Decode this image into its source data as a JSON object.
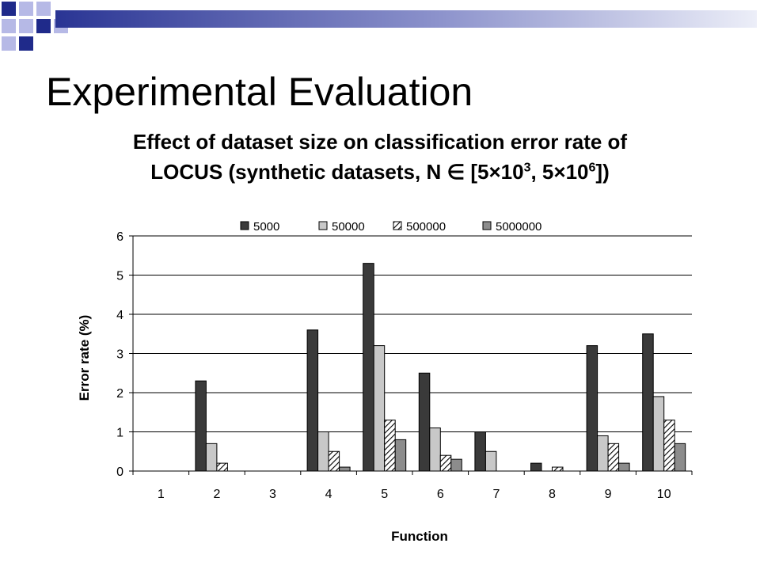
{
  "slide": {
    "title": "Experimental Evaluation",
    "subtitle": {
      "line1": "Effect of dataset size on classification error rate of",
      "line2_part1": "LOCUS (synthetic datasets, N ",
      "element_of": "∈",
      "line2_part2": " [5",
      "times1": "×",
      "base1": "10",
      "exp1": "3",
      "line2_part3": ", 5",
      "times2": "×",
      "base2": "10",
      "exp2": "6",
      "line2_part4": "])"
    }
  },
  "chart_data": {
    "type": "bar",
    "categories": [
      "1",
      "2",
      "3",
      "4",
      "5",
      "6",
      "7",
      "8",
      "9",
      "10"
    ],
    "series": [
      {
        "name": "5000",
        "color": "#3a3a3a",
        "pattern": "solid-dark",
        "values": [
          0,
          2.3,
          0,
          3.6,
          5.3,
          2.5,
          1.0,
          0.2,
          3.2,
          3.5
        ]
      },
      {
        "name": "50000",
        "color": "#c8c8c8",
        "pattern": "solid-light",
        "values": [
          0,
          0.7,
          0,
          1.0,
          3.2,
          1.1,
          0.5,
          0,
          0.9,
          1.9
        ]
      },
      {
        "name": "500000",
        "color": "#ffffff",
        "pattern": "diagonal-hatch",
        "values": [
          0,
          0.2,
          0,
          0.5,
          1.3,
          0.4,
          0,
          0.1,
          0.7,
          1.3
        ]
      },
      {
        "name": "5000000",
        "color": "#8c8c8c",
        "pattern": "solid-medium",
        "values": [
          0,
          0,
          0,
          0.1,
          0.8,
          0.3,
          0,
          0,
          0.2,
          0.7
        ]
      }
    ],
    "xlabel": "Function",
    "ylabel": "Error rate (%)",
    "ylim": [
      0,
      6
    ],
    "yticks": [
      "0",
      "1",
      "2",
      "3",
      "4",
      "5",
      "6"
    ],
    "grid": true,
    "legend_position": "top"
  }
}
